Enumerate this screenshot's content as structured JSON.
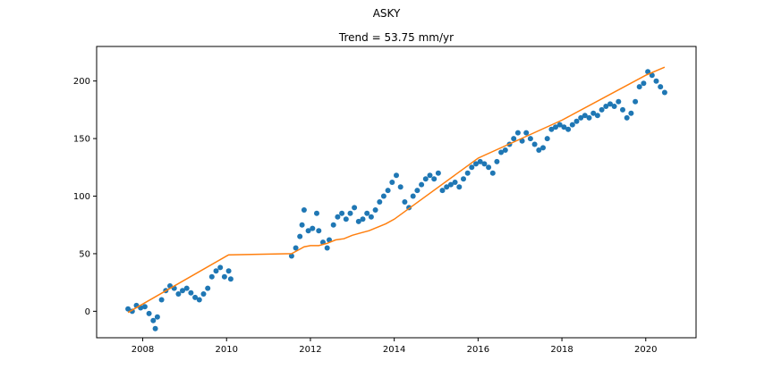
{
  "chart_data": {
    "type": "scatter",
    "title": "ASKY",
    "subtitle": "Trend = 53.75 mm/yr",
    "xlabel": "",
    "ylabel": "",
    "xlim": [
      2006.9,
      2021.2
    ],
    "ylim": [
      -23,
      230
    ],
    "xticks": [
      2008,
      2010,
      2012,
      2014,
      2016,
      2018,
      2020
    ],
    "xtick_labels": [
      "2008",
      "2010",
      "2012",
      "2014",
      "2016",
      "2018",
      "2020"
    ],
    "yticks": [
      0,
      50,
      100,
      150,
      200
    ],
    "ytick_labels": [
      "0",
      "50",
      "100",
      "150",
      "200"
    ],
    "grid": false,
    "series": [
      {
        "kind": "scatter",
        "color": "#1f77b4",
        "x": [
          2007.65,
          2007.75,
          2007.85,
          2007.95,
          2008.05,
          2008.15,
          2008.25,
          2008.3,
          2008.35,
          2008.45,
          2008.55,
          2008.65,
          2008.75,
          2008.85,
          2008.95,
          2009.05,
          2009.15,
          2009.25,
          2009.35,
          2009.45,
          2009.55,
          2009.65,
          2009.75,
          2009.85,
          2009.95,
          2010.05,
          2010.1,
          2011.55,
          2011.65,
          2011.75,
          2011.8,
          2011.85,
          2011.95,
          2012.05,
          2012.15,
          2012.2,
          2012.3,
          2012.4,
          2012.45,
          2012.55,
          2012.65,
          2012.75,
          2012.85,
          2012.95,
          2013.05,
          2013.15,
          2013.25,
          2013.35,
          2013.45,
          2013.55,
          2013.65,
          2013.75,
          2013.85,
          2013.95,
          2014.05,
          2014.15,
          2014.25,
          2014.35,
          2014.45,
          2014.55,
          2014.65,
          2014.75,
          2014.85,
          2014.95,
          2015.05,
          2015.15,
          2015.25,
          2015.35,
          2015.45,
          2015.55,
          2015.65,
          2015.75,
          2015.85,
          2015.95,
          2016.05,
          2016.15,
          2016.25,
          2016.35,
          2016.45,
          2016.55,
          2016.65,
          2016.75,
          2016.85,
          2016.95,
          2017.05,
          2017.15,
          2017.25,
          2017.35,
          2017.45,
          2017.55,
          2017.65,
          2017.75,
          2017.85,
          2017.95,
          2018.05,
          2018.15,
          2018.25,
          2018.35,
          2018.45,
          2018.55,
          2018.65,
          2018.75,
          2018.85,
          2018.95,
          2019.05,
          2019.15,
          2019.25,
          2019.35,
          2019.45,
          2019.55,
          2019.65,
          2019.75,
          2019.85,
          2019.95,
          2020.05,
          2020.15,
          2020.25,
          2020.35,
          2020.45
        ],
        "y": [
          2,
          0,
          5,
          3,
          4,
          -2,
          -8,
          -15,
          -5,
          10,
          18,
          22,
          20,
          15,
          18,
          20,
          16,
          12,
          10,
          15,
          20,
          30,
          35,
          38,
          30,
          35,
          28,
          48,
          55,
          65,
          75,
          88,
          70,
          72,
          85,
          70,
          60,
          55,
          62,
          75,
          82,
          85,
          80,
          85,
          90,
          78,
          80,
          85,
          82,
          88,
          95,
          100,
          105,
          112,
          118,
          108,
          95,
          90,
          100,
          105,
          110,
          115,
          118,
          115,
          120,
          105,
          108,
          110,
          112,
          108,
          115,
          120,
          125,
          128,
          130,
          128,
          125,
          120,
          130,
          138,
          140,
          145,
          150,
          155,
          148,
          155,
          150,
          145,
          140,
          142,
          150,
          158,
          160,
          162,
          160,
          158,
          162,
          165,
          168,
          170,
          168,
          172,
          170,
          175,
          178,
          180,
          178,
          182,
          175,
          168,
          172,
          182,
          195,
          198,
          208,
          205,
          200,
          195,
          190
        ]
      },
      {
        "kind": "line",
        "color": "#ff7f0e",
        "x": [
          2007.65,
          2010.05,
          2011.55,
          2011.7,
          2011.85,
          2012.0,
          2012.2,
          2012.4,
          2012.6,
          2012.8,
          2013.0,
          2013.2,
          2013.4,
          2013.6,
          2013.8,
          2014.0,
          2016.0,
          2018.0,
          2020.0,
          2020.45
        ],
        "y": [
          -1,
          49,
          50,
          53,
          56,
          57,
          57,
          59,
          62,
          63,
          66,
          68,
          70,
          73,
          76,
          80,
          133,
          166,
          205,
          212
        ]
      }
    ]
  }
}
